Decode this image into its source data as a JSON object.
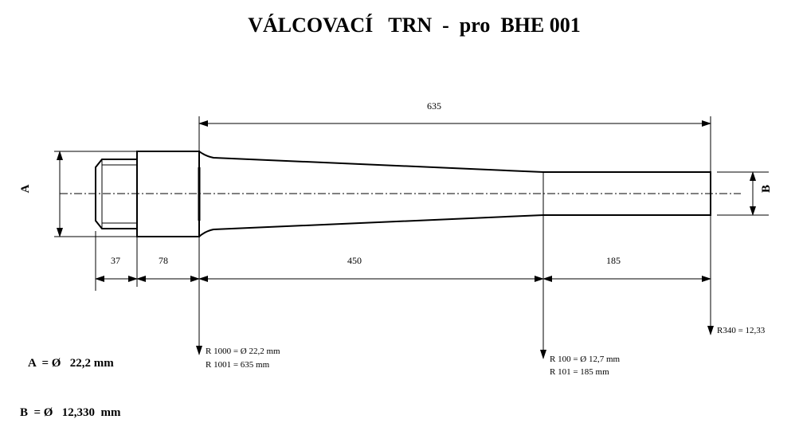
{
  "title": "VÁLCOVACÍ   TRN  -  pro  BHE 001",
  "dimensions": {
    "overall": "635",
    "thread": "37",
    "shank": "78",
    "taper": "450",
    "tip": "185"
  },
  "diameter_labels": {
    "a": "A",
    "b": "B"
  },
  "notes": {
    "r1000": "R 1000 = Ø 22,2 mm",
    "r1001": "R 1001 = 635 mm",
    "r100": "R 100 = Ø 12,7 mm",
    "r101": "R 101 = 185 mm",
    "r340": "R340 = 12,33"
  },
  "legend": {
    "a": "A  = Ø   22,2 mm",
    "b": "B  = Ø   12,330  mm"
  }
}
